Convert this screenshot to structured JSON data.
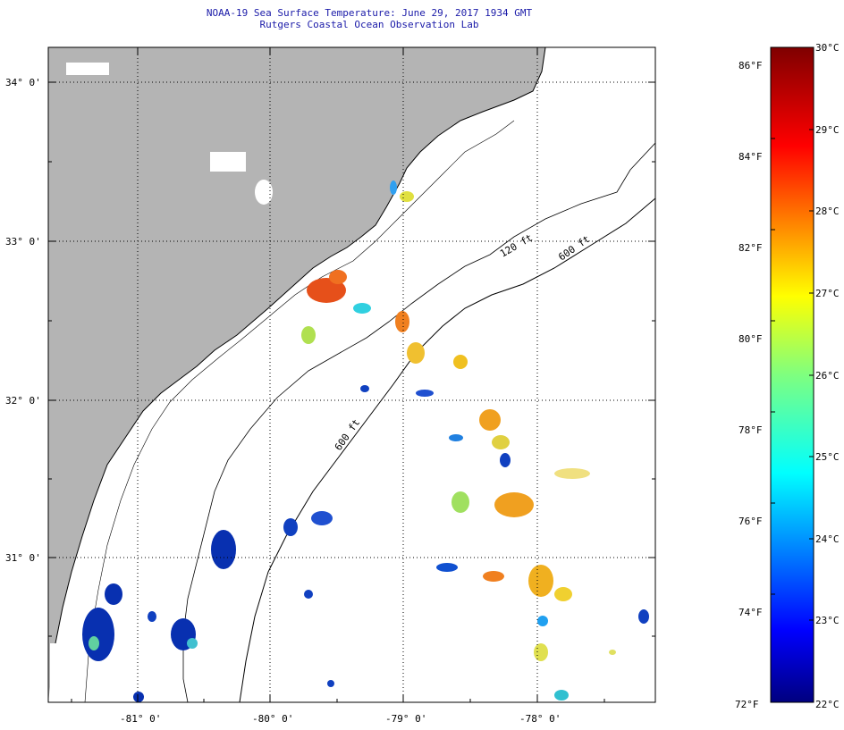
{
  "title": "NOAA-19 Sea Surface Temperature:  June 29, 2017 1934 GMT",
  "subtitle": "Rutgers Coastal Ocean Observation Lab",
  "map": {
    "lon_labels": [
      "-81° 0'",
      "-80° 0'",
      "-79° 0'",
      "-78° 0'"
    ],
    "lat_labels": [
      "34° 0'",
      "33° 0'",
      "32° 0'",
      "31° 0'"
    ],
    "isobaths": [
      "120 ft",
      "600 ft",
      "600 ft"
    ],
    "land_color": "#b4b4b4",
    "ocean_color": "#ffffff"
  },
  "colorbar": {
    "fahrenheit_labels": [
      "86°F",
      "84°F",
      "82°F",
      "80°F",
      "78°F",
      "76°F",
      "74°F",
      "72°F"
    ],
    "celsius_labels": [
      "30°C",
      "29°C",
      "28°C",
      "27°C",
      "26°C",
      "25°C",
      "24°C",
      "23°C",
      "22°C"
    ],
    "min_c": 22,
    "max_c": 30,
    "colormap": "jet"
  }
}
